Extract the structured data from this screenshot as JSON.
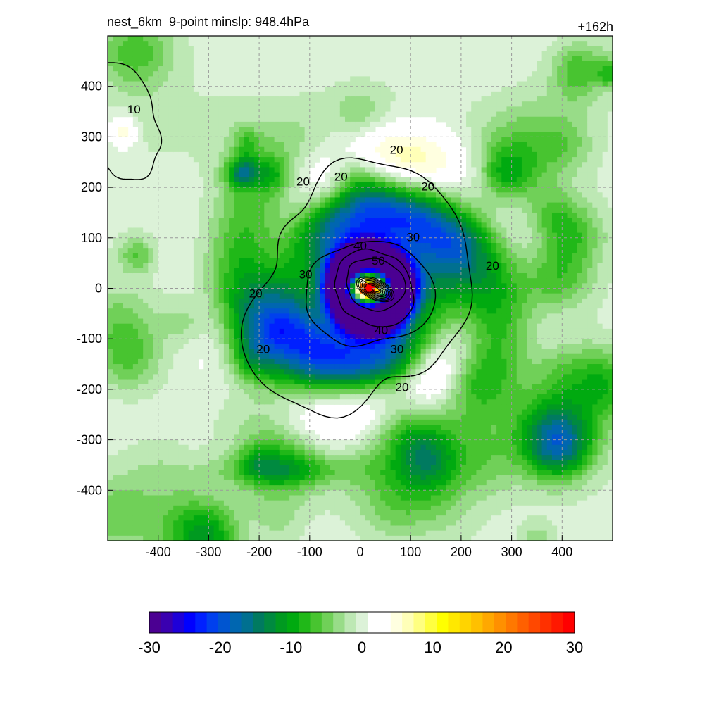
{
  "title_left": "nest_6km  9-point minslp: 948.4hPa",
  "title_right": "+162h",
  "chart_data": {
    "type": "heatmap",
    "x_ticks": [
      -400,
      -300,
      -200,
      -100,
      0,
      100,
      200,
      300,
      400
    ],
    "y_ticks": [
      400,
      300,
      200,
      100,
      0,
      -100,
      -200,
      -300,
      -400
    ],
    "xlim": [
      -500,
      500
    ],
    "ylim": [
      -500,
      500
    ],
    "grid": true,
    "grid_style": "dashed",
    "center_marker": {
      "x": 18,
      "y": 0,
      "color": "#ff0000"
    },
    "colorbar": {
      "ticks": [
        -30,
        -20,
        -10,
        0,
        10,
        20,
        30
      ],
      "range": [
        -30,
        30
      ],
      "colors": [
        "#4b0092",
        "#3a00b0",
        "#1e00d8",
        "#0000ff",
        "#0020ff",
        "#0040ee",
        "#0055d0",
        "#0066b0",
        "#007090",
        "#007a60",
        "#008a40",
        "#009a20",
        "#00aa10",
        "#20b818",
        "#48c430",
        "#70d058",
        "#98dc88",
        "#bde8b4",
        "#dcf2d8",
        "#ffffff",
        "#ffffff",
        "#ffffe0",
        "#ffffb8",
        "#ffff80",
        "#ffff40",
        "#ffff00",
        "#ffe800",
        "#ffd400",
        "#ffc000",
        "#ffa800",
        "#ff9000",
        "#ff7800",
        "#ff6000",
        "#ff4800",
        "#ff3000",
        "#ff1800",
        "#ff0000"
      ],
      "zero_band": [
        -3,
        3
      ]
    },
    "contour_labels": [
      {
        "text": "10",
        "x": -448,
        "y": 355
      },
      {
        "text": "20",
        "x": 72,
        "y": 275
      },
      {
        "text": "20",
        "x": -38,
        "y": 222
      },
      {
        "text": "20",
        "x": -113,
        "y": 212
      },
      {
        "text": "20",
        "x": 134,
        "y": 202
      },
      {
        "text": "20",
        "x": 262,
        "y": 45
      },
      {
        "text": "20",
        "x": -207,
        "y": -10
      },
      {
        "text": "20",
        "x": -192,
        "y": -120
      },
      {
        "text": "20",
        "x": 83,
        "y": -195
      },
      {
        "text": "30",
        "x": 105,
        "y": 102
      },
      {
        "text": "30",
        "x": -108,
        "y": 28
      },
      {
        "text": "30",
        "x": 73,
        "y": -120
      },
      {
        "text": "40",
        "x": 0,
        "y": 85
      },
      {
        "text": "40",
        "x": 42,
        "y": -82
      },
      {
        "text": "50",
        "x": 36,
        "y": 55
      }
    ],
    "contours": [
      {
        "level": 20,
        "cx": 0,
        "cy": 0,
        "rx": 215,
        "ry": 240,
        "rot": -10,
        "jitter": 28,
        "seed": 3
      },
      {
        "level": 30,
        "cx": 18,
        "cy": -10,
        "rx": 120,
        "ry": 110,
        "rot": 0,
        "jitter": 10,
        "seed": 5
      },
      {
        "level": 40,
        "cx": 28,
        "cy": 0,
        "rx": 82,
        "ry": 72,
        "rot": -20,
        "jitter": 5,
        "seed": 7
      },
      {
        "level": 50,
        "cx": 30,
        "cy": 8,
        "rx": 62,
        "ry": 48,
        "rot": -25,
        "jitter": 3,
        "seed": 9
      },
      {
        "level": 10,
        "cx": -470,
        "cy": 330,
        "rx": 75,
        "ry": 110,
        "rot": 15,
        "jitter": 10,
        "seed": 2
      }
    ]
  }
}
